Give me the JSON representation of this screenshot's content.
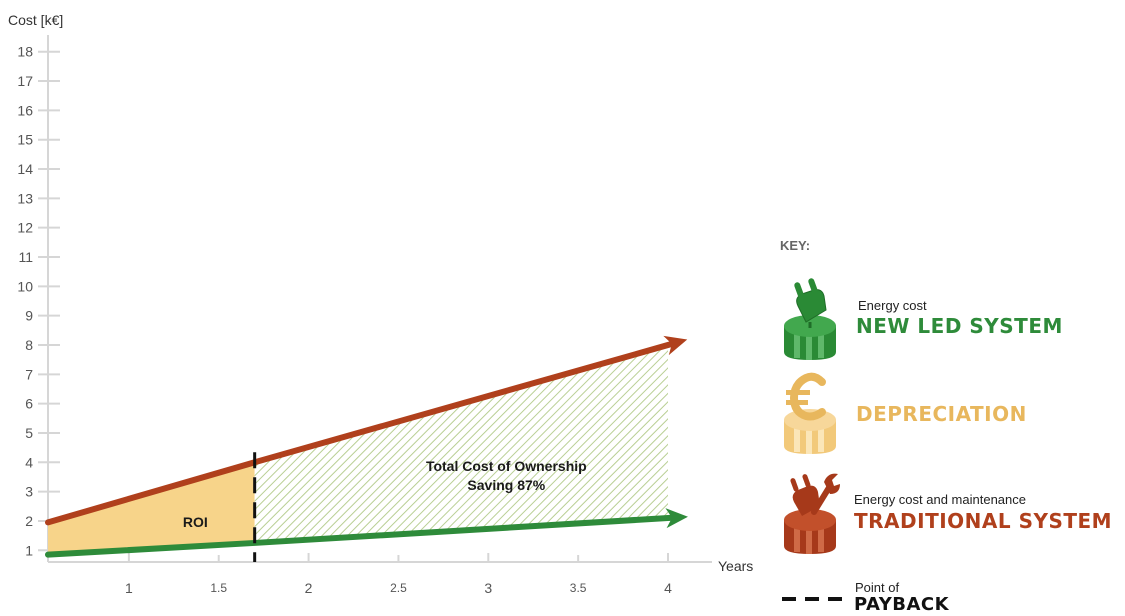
{
  "chart_data": {
    "type": "area",
    "ylabel": "Cost [k€]",
    "xlabel": "Years",
    "xlim": [
      0.55,
      4.0
    ],
    "ylim": [
      0.6,
      18.4
    ],
    "y_ticks": [
      1,
      2,
      3,
      4,
      5,
      6,
      7,
      8,
      9,
      10,
      11,
      12,
      13,
      14,
      15,
      16,
      17,
      18
    ],
    "x_ticks_major": [
      1,
      2,
      3,
      4
    ],
    "x_ticks_minor": [
      1.5,
      2.5,
      3.5
    ],
    "grid": false,
    "series": [
      {
        "name": "TRADITIONAL SYSTEM",
        "x": [
          0.55,
          1.7,
          4.0
        ],
        "values": [
          1.95,
          4.0,
          8.0
        ]
      },
      {
        "name": "NEW LED SYSTEM",
        "x": [
          0.55,
          1.7,
          4.0
        ],
        "values": [
          0.85,
          1.25,
          2.1
        ]
      }
    ],
    "payback_x": 1.7,
    "annotations": {
      "roi": "ROI",
      "tco_line1": "Total Cost of Ownership",
      "tco_line2": "Saving 87%"
    },
    "colors": {
      "traditional": "#b0401c",
      "led": "#2e8b3a",
      "depreciation": "#f7d48a",
      "hatch": "#b9cf94",
      "payback": "#111111",
      "axis": "#d6d6d6"
    }
  },
  "key": {
    "title": "KEY:",
    "led": {
      "small": "Energy cost",
      "big": "NEW LED SYSTEM",
      "icon": "plug-icon",
      "color": "#2e8b3a"
    },
    "depreciation": {
      "big": "DEPRECIATION",
      "icon": "euro-icon",
      "color": "#e8b75d"
    },
    "traditional": {
      "small": "Energy cost and maintenance",
      "big": "TRADITIONAL SYSTEM",
      "icon": "plug-wrench-icon",
      "color": "#b0401c"
    },
    "payback": {
      "small": "Point of",
      "big": "PAYBACK",
      "icon": "dashed-line-icon",
      "color": "#111111"
    }
  }
}
